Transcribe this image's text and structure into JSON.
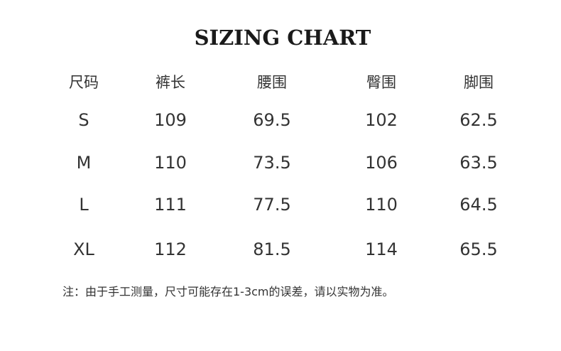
{
  "title": "SIZING CHART",
  "table": {
    "headers": [
      "尺码",
      "裤长",
      "腰围",
      "臀围",
      "脚围"
    ],
    "rows": [
      [
        "S",
        "109",
        "69.5",
        "102",
        "62.5"
      ],
      [
        "M",
        "110",
        "73.5",
        "106",
        "63.5"
      ],
      [
        "L",
        "111",
        "77.5",
        "110",
        "64.5"
      ],
      [
        "XL",
        "112",
        "81.5",
        "114",
        "65.5"
      ]
    ]
  },
  "note": "注：由于手工测量，尺寸可能存在1-3cm的误差，请以实物为准。"
}
